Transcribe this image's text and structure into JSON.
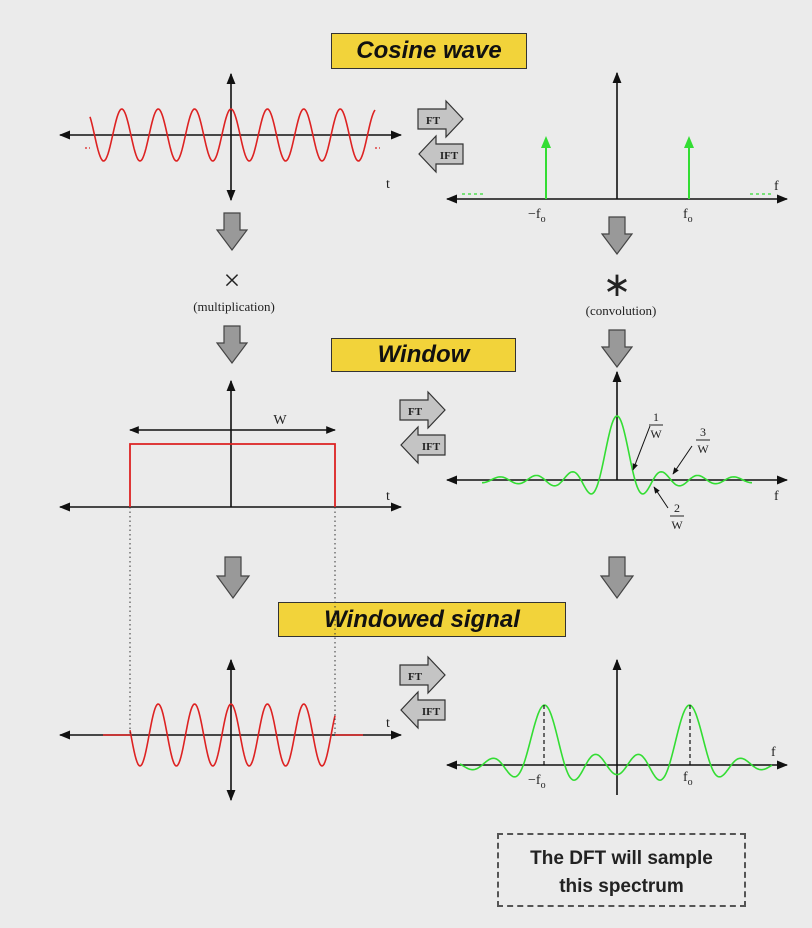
{
  "titles": {
    "cosine": "Cosine wave",
    "window": "Window",
    "windowed": "Windowed signal"
  },
  "arrows": {
    "ft": "FT",
    "ift": "IFT"
  },
  "axis": {
    "t": "t",
    "f": "f"
  },
  "ops": {
    "mult_symbol": "×",
    "mult_label": "(multiplication)",
    "conv_symbol": "∗",
    "conv_label": "(convolution)"
  },
  "freq": {
    "neg": "−f",
    "pos": "f",
    "sub": "o"
  },
  "window_width": "W",
  "fractions": {
    "num1": "1",
    "num2": "2",
    "num3": "3",
    "den": "W"
  },
  "note": {
    "line1": "The DFT will sample",
    "line2": "this spectrum"
  },
  "colors": {
    "signal": "#dd2222",
    "spectrum": "#33dd33",
    "title_bg": "#f2d33a",
    "arrow_fill": "#999999"
  }
}
